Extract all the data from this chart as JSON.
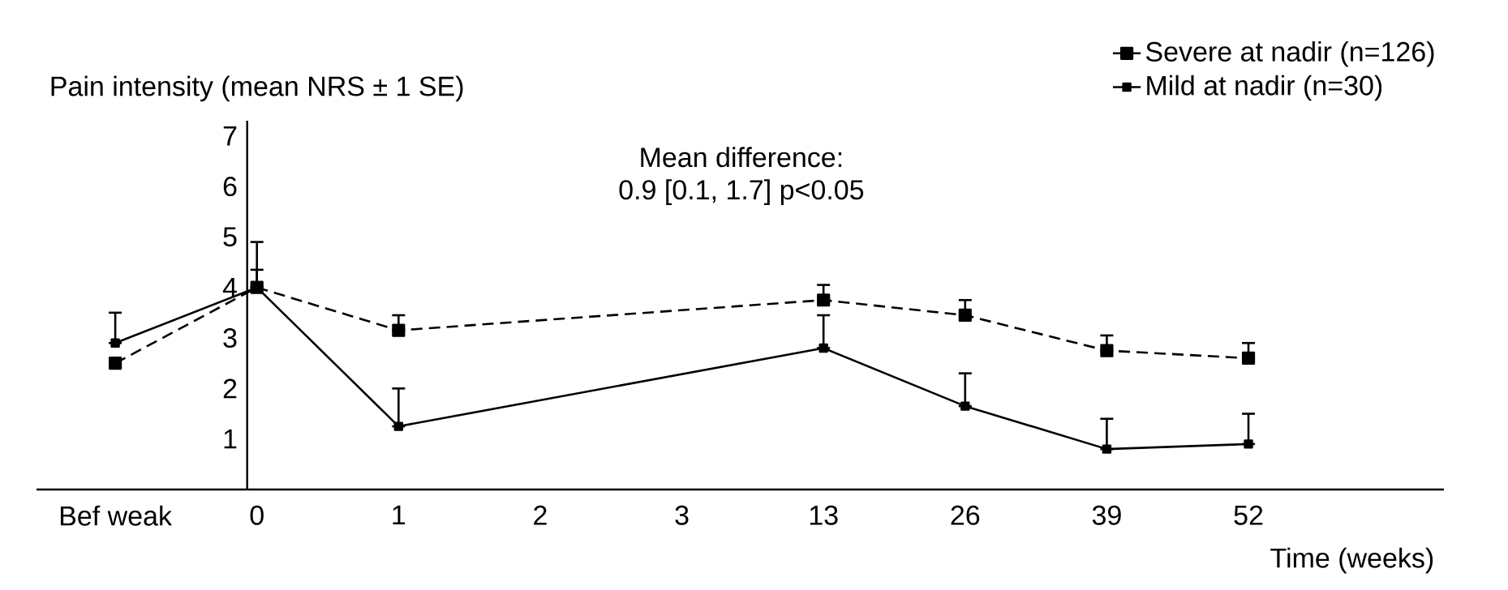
{
  "chart_data": {
    "type": "line",
    "xlabel": "Time (weeks)",
    "ylabel": "Pain intensity (mean NRS ± 1 SE)",
    "annotations": [
      "Mean difference:",
      "0.9 [0.1, 1.7] p<0.05"
    ],
    "categories": [
      "Bef weak",
      "0",
      "1",
      "2",
      "3",
      "13",
      "26",
      "39",
      "52"
    ],
    "series": [
      {
        "name": "Severe at nadir (n=126)",
        "color": "#000000",
        "line_style": "dashed",
        "values": [
          2.5,
          4.0,
          3.15,
          null,
          null,
          3.75,
          3.45,
          2.75,
          2.6
        ],
        "errors": [
          null,
          [
            4.0,
            4.35
          ],
          [
            3.15,
            3.45
          ],
          null,
          null,
          [
            3.75,
            4.05
          ],
          [
            3.45,
            3.75
          ],
          [
            2.75,
            3.05
          ],
          [
            2.6,
            2.9
          ]
        ]
      },
      {
        "name": "Mild at nadir (n=30)",
        "color": "#000000",
        "line_style": "solid",
        "values": [
          2.9,
          4.0,
          1.25,
          null,
          null,
          2.8,
          1.65,
          0.8,
          0.9
        ],
        "errors": [
          [
            2.9,
            3.5
          ],
          [
            4.0,
            4.9
          ],
          [
            1.25,
            2.0
          ],
          null,
          null,
          [
            2.8,
            3.45
          ],
          [
            1.65,
            2.3
          ],
          [
            0.8,
            1.4
          ],
          [
            0.9,
            1.5
          ]
        ]
      }
    ],
    "ylim": [
      0,
      7.3
    ],
    "yticks": [
      1,
      2,
      3,
      4,
      5,
      6,
      7
    ],
    "legend": "top right",
    "marker": "square"
  }
}
